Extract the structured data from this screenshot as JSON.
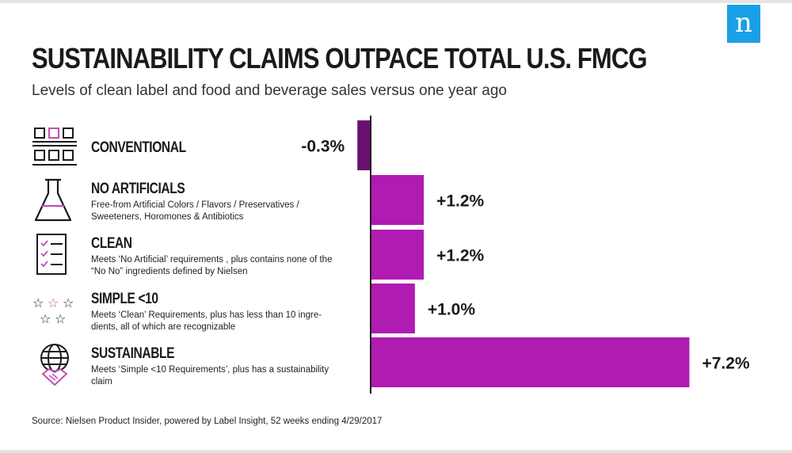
{
  "header": {
    "title": "SUSTAINABILITY CLAIMS OUTPACE TOTAL U.S. FMCG",
    "subtitle": "Levels of clean label and food and beverage sales versus one year ago",
    "logo_letter": "n"
  },
  "rows": [
    {
      "label": "CONVENTIONAL",
      "desc": "",
      "icon": "shelf-grid-icon"
    },
    {
      "label": "NO ARTIFICIALS",
      "desc": "Free-from Artificial Colors / Flavors / Preservatives / Sweeteners, Horomones & Antibiotics",
      "icon": "flask-icon"
    },
    {
      "label": "CLEAN",
      "desc": "Meets ‘No Artificial’ requirements , plus contains none of the “No No” ingredients defined by Nielsen",
      "icon": "checklist-icon"
    },
    {
      "label": "SIMPLE <10",
      "desc": "Meets ‘Clean’ Requirements, plus has less than 10 ingre- dients, all of which are recognizable",
      "icon": "stars-icon"
    },
    {
      "label": "SUSTAINABLE",
      "desc": "Meets ‘Simple <10 Requirements’, plus has a sustainability claim",
      "icon": "globe-handshake-icon"
    }
  ],
  "source": "Source: Nielsen Product Insider, powered by Label Insight, 52 weeks ending 4/29/2017",
  "colors": {
    "bar_positive": "#b01bb1",
    "bar_negative": "#6b0f6e",
    "axis": "#1a1a1a",
    "logo": "#1aa0e6"
  },
  "chart_data": {
    "type": "bar",
    "orientation": "horizontal",
    "categories": [
      "CONVENTIONAL",
      "NO ARTIFICIALS",
      "CLEAN",
      "SIMPLE <10",
      "SUSTAINABLE"
    ],
    "values": [
      -0.3,
      1.2,
      1.2,
      1.0,
      7.2
    ],
    "value_labels": [
      "-0.3%",
      "+1.2%",
      "+1.2%",
      "+1.0%",
      "+7.2%"
    ],
    "unit": "%",
    "xlim": [
      -0.4,
      7.3
    ]
  }
}
